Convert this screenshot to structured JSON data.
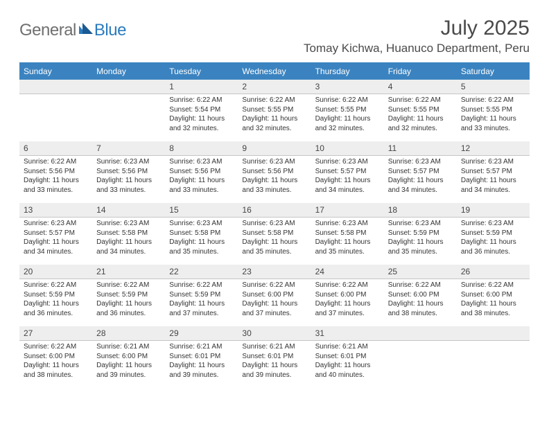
{
  "logo": {
    "general": "General",
    "blue": "Blue"
  },
  "header": {
    "title": "July 2025",
    "location": "Tomay Kichwa, Huanuco Department, Peru"
  },
  "colors": {
    "accent": "#3b83c0",
    "dateRowBg": "#eeeeee",
    "textMain": "#333333",
    "logoGray": "#6f6f6f",
    "logoBlue": "#2a7bbf"
  },
  "dayNames": [
    "Sunday",
    "Monday",
    "Tuesday",
    "Wednesday",
    "Thursday",
    "Friday",
    "Saturday"
  ],
  "weeks": [
    {
      "dates": [
        "",
        "",
        "1",
        "2",
        "3",
        "4",
        "5"
      ],
      "cells": [
        null,
        null,
        {
          "sunrise": "Sunrise: 6:22 AM",
          "sunset": "Sunset: 5:54 PM",
          "day1": "Daylight: 11 hours",
          "day2": "and 32 minutes."
        },
        {
          "sunrise": "Sunrise: 6:22 AM",
          "sunset": "Sunset: 5:55 PM",
          "day1": "Daylight: 11 hours",
          "day2": "and 32 minutes."
        },
        {
          "sunrise": "Sunrise: 6:22 AM",
          "sunset": "Sunset: 5:55 PM",
          "day1": "Daylight: 11 hours",
          "day2": "and 32 minutes."
        },
        {
          "sunrise": "Sunrise: 6:22 AM",
          "sunset": "Sunset: 5:55 PM",
          "day1": "Daylight: 11 hours",
          "day2": "and 32 minutes."
        },
        {
          "sunrise": "Sunrise: 6:22 AM",
          "sunset": "Sunset: 5:55 PM",
          "day1": "Daylight: 11 hours",
          "day2": "and 33 minutes."
        }
      ]
    },
    {
      "dates": [
        "6",
        "7",
        "8",
        "9",
        "10",
        "11",
        "12"
      ],
      "cells": [
        {
          "sunrise": "Sunrise: 6:22 AM",
          "sunset": "Sunset: 5:56 PM",
          "day1": "Daylight: 11 hours",
          "day2": "and 33 minutes."
        },
        {
          "sunrise": "Sunrise: 6:23 AM",
          "sunset": "Sunset: 5:56 PM",
          "day1": "Daylight: 11 hours",
          "day2": "and 33 minutes."
        },
        {
          "sunrise": "Sunrise: 6:23 AM",
          "sunset": "Sunset: 5:56 PM",
          "day1": "Daylight: 11 hours",
          "day2": "and 33 minutes."
        },
        {
          "sunrise": "Sunrise: 6:23 AM",
          "sunset": "Sunset: 5:56 PM",
          "day1": "Daylight: 11 hours",
          "day2": "and 33 minutes."
        },
        {
          "sunrise": "Sunrise: 6:23 AM",
          "sunset": "Sunset: 5:57 PM",
          "day1": "Daylight: 11 hours",
          "day2": "and 34 minutes."
        },
        {
          "sunrise": "Sunrise: 6:23 AM",
          "sunset": "Sunset: 5:57 PM",
          "day1": "Daylight: 11 hours",
          "day2": "and 34 minutes."
        },
        {
          "sunrise": "Sunrise: 6:23 AM",
          "sunset": "Sunset: 5:57 PM",
          "day1": "Daylight: 11 hours",
          "day2": "and 34 minutes."
        }
      ]
    },
    {
      "dates": [
        "13",
        "14",
        "15",
        "16",
        "17",
        "18",
        "19"
      ],
      "cells": [
        {
          "sunrise": "Sunrise: 6:23 AM",
          "sunset": "Sunset: 5:57 PM",
          "day1": "Daylight: 11 hours",
          "day2": "and 34 minutes."
        },
        {
          "sunrise": "Sunrise: 6:23 AM",
          "sunset": "Sunset: 5:58 PM",
          "day1": "Daylight: 11 hours",
          "day2": "and 34 minutes."
        },
        {
          "sunrise": "Sunrise: 6:23 AM",
          "sunset": "Sunset: 5:58 PM",
          "day1": "Daylight: 11 hours",
          "day2": "and 35 minutes."
        },
        {
          "sunrise": "Sunrise: 6:23 AM",
          "sunset": "Sunset: 5:58 PM",
          "day1": "Daylight: 11 hours",
          "day2": "and 35 minutes."
        },
        {
          "sunrise": "Sunrise: 6:23 AM",
          "sunset": "Sunset: 5:58 PM",
          "day1": "Daylight: 11 hours",
          "day2": "and 35 minutes."
        },
        {
          "sunrise": "Sunrise: 6:23 AM",
          "sunset": "Sunset: 5:59 PM",
          "day1": "Daylight: 11 hours",
          "day2": "and 35 minutes."
        },
        {
          "sunrise": "Sunrise: 6:23 AM",
          "sunset": "Sunset: 5:59 PM",
          "day1": "Daylight: 11 hours",
          "day2": "and 36 minutes."
        }
      ]
    },
    {
      "dates": [
        "20",
        "21",
        "22",
        "23",
        "24",
        "25",
        "26"
      ],
      "cells": [
        {
          "sunrise": "Sunrise: 6:22 AM",
          "sunset": "Sunset: 5:59 PM",
          "day1": "Daylight: 11 hours",
          "day2": "and 36 minutes."
        },
        {
          "sunrise": "Sunrise: 6:22 AM",
          "sunset": "Sunset: 5:59 PM",
          "day1": "Daylight: 11 hours",
          "day2": "and 36 minutes."
        },
        {
          "sunrise": "Sunrise: 6:22 AM",
          "sunset": "Sunset: 5:59 PM",
          "day1": "Daylight: 11 hours",
          "day2": "and 37 minutes."
        },
        {
          "sunrise": "Sunrise: 6:22 AM",
          "sunset": "Sunset: 6:00 PM",
          "day1": "Daylight: 11 hours",
          "day2": "and 37 minutes."
        },
        {
          "sunrise": "Sunrise: 6:22 AM",
          "sunset": "Sunset: 6:00 PM",
          "day1": "Daylight: 11 hours",
          "day2": "and 37 minutes."
        },
        {
          "sunrise": "Sunrise: 6:22 AM",
          "sunset": "Sunset: 6:00 PM",
          "day1": "Daylight: 11 hours",
          "day2": "and 38 minutes."
        },
        {
          "sunrise": "Sunrise: 6:22 AM",
          "sunset": "Sunset: 6:00 PM",
          "day1": "Daylight: 11 hours",
          "day2": "and 38 minutes."
        }
      ]
    },
    {
      "dates": [
        "27",
        "28",
        "29",
        "30",
        "31",
        "",
        ""
      ],
      "cells": [
        {
          "sunrise": "Sunrise: 6:22 AM",
          "sunset": "Sunset: 6:00 PM",
          "day1": "Daylight: 11 hours",
          "day2": "and 38 minutes."
        },
        {
          "sunrise": "Sunrise: 6:21 AM",
          "sunset": "Sunset: 6:00 PM",
          "day1": "Daylight: 11 hours",
          "day2": "and 39 minutes."
        },
        {
          "sunrise": "Sunrise: 6:21 AM",
          "sunset": "Sunset: 6:01 PM",
          "day1": "Daylight: 11 hours",
          "day2": "and 39 minutes."
        },
        {
          "sunrise": "Sunrise: 6:21 AM",
          "sunset": "Sunset: 6:01 PM",
          "day1": "Daylight: 11 hours",
          "day2": "and 39 minutes."
        },
        {
          "sunrise": "Sunrise: 6:21 AM",
          "sunset": "Sunset: 6:01 PM",
          "day1": "Daylight: 11 hours",
          "day2": "and 40 minutes."
        },
        null,
        null
      ]
    }
  ]
}
